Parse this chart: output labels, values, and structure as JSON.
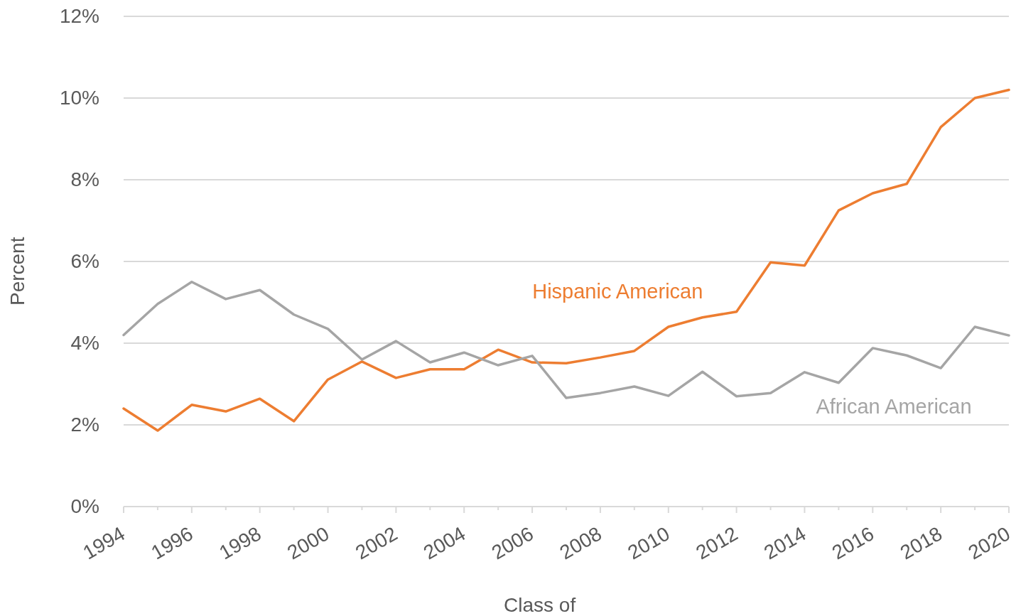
{
  "chart_data": {
    "type": "line",
    "xlabel": "Class of",
    "ylabel": "Percent",
    "x": [
      1994,
      1995,
      1996,
      1997,
      1998,
      1999,
      2000,
      2001,
      2002,
      2003,
      2004,
      2005,
      2006,
      2007,
      2008,
      2009,
      2010,
      2011,
      2012,
      2013,
      2014,
      2015,
      2016,
      2017,
      2018,
      2019,
      2020
    ],
    "xlim": [
      1994,
      2020
    ],
    "xticks": [
      1994,
      {
        "value": 1995,
        "label": null
      },
      1996,
      {
        "value": 1997,
        "label": null
      },
      1998,
      {
        "value": 1999,
        "label": null
      },
      2000,
      {
        "value": 2001,
        "label": null
      },
      2002,
      {
        "value": 2003,
        "label": null
      },
      2004,
      {
        "value": 2005,
        "label": null
      },
      2006,
      {
        "value": 2007,
        "label": null
      },
      2008,
      {
        "value": 2009,
        "label": null
      },
      2010,
      {
        "value": 2011,
        "label": null
      },
      2012,
      {
        "value": 2013,
        "label": null
      },
      2014,
      {
        "value": 2015,
        "label": null
      },
      2016,
      {
        "value": 2017,
        "label": null
      },
      2018,
      {
        "value": 2019,
        "label": null
      },
      2020
    ],
    "ylim": [
      0,
      12
    ],
    "yticks": [
      {
        "value": 0,
        "label": "0%"
      },
      {
        "value": 2,
        "label": "2%"
      },
      {
        "value": 4,
        "label": "4%"
      },
      {
        "value": 6,
        "label": "6%"
      },
      {
        "value": 8,
        "label": "8%"
      },
      {
        "value": 10,
        "label": "10%"
      },
      {
        "value": 12,
        "label": "12%"
      }
    ],
    "grid": "y",
    "series": [
      {
        "name": "Hispanic American",
        "color": "#ed7d31",
        "values": [
          2.4,
          1.86,
          2.49,
          2.33,
          2.64,
          2.09,
          3.11,
          3.55,
          3.15,
          3.36,
          3.36,
          3.84,
          3.53,
          3.51,
          3.65,
          3.81,
          4.4,
          4.63,
          4.77,
          5.98,
          5.9,
          7.25,
          7.67,
          7.9,
          9.29,
          10.0,
          10.2
        ]
      },
      {
        "name": "African American",
        "color": "#a5a5a5",
        "values": [
          4.2,
          4.96,
          5.5,
          5.08,
          5.3,
          4.7,
          4.35,
          3.6,
          4.05,
          3.53,
          3.77,
          3.46,
          3.69,
          2.66,
          2.78,
          2.94,
          2.71,
          3.3,
          2.7,
          2.78,
          3.29,
          3.03,
          3.88,
          3.7,
          3.39,
          4.4,
          4.19
        ]
      }
    ]
  }
}
